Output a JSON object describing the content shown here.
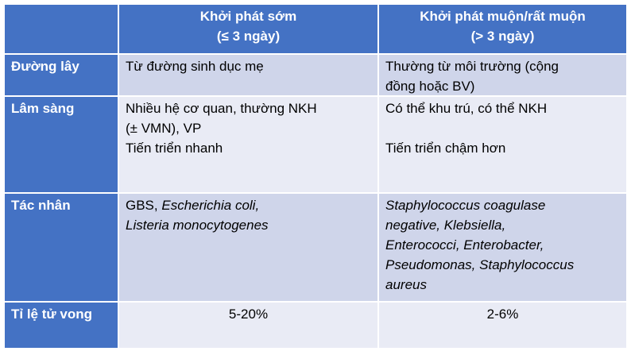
{
  "header": {
    "col1_line1": "Khởi phát sớm",
    "col1_line2": "(≤ 3 ngày)",
    "col2_line1": "Khởi phát muộn/rất muộn",
    "col2_line2": "(> 3 ngày)"
  },
  "rows": {
    "duong_lay": {
      "label": "Đường lây",
      "early": "Từ đường sinh dục mẹ",
      "late_line1": "Thường từ môi trường (cộng",
      "late_line2": "đồng hoặc BV)"
    },
    "lam_sang": {
      "label": "Lâm sàng",
      "early_line1": "Nhiều hệ cơ quan, thường NKH",
      "early_line2": "(± VMN), VP",
      "early_line3": "Tiến triển nhanh",
      "late_line1": "Có thể khu trú, có thể NKH",
      "late_line2": "Tiến triển chậm hơn"
    },
    "tac_nhan": {
      "label": "Tác nhân",
      "early_line1_plain": "GBS, ",
      "early_line1_italic": "Escherichia coli,",
      "early_line2_italic": "Listeria monocytogenes",
      "late_line1": "Staphylococcus coagulase",
      "late_line2": "negative, Klebsiella,",
      "late_line3": "Enterococci, Enterobacter,",
      "late_line4": "Pseudomonas, Staphylococcus",
      "late_line5": "aureus"
    },
    "ti_le": {
      "label": "Tỉ lệ tử vong",
      "early": "5-20%",
      "late": "2-6%"
    }
  },
  "colors": {
    "header_bg": "#4472c4",
    "row_odd_bg": "#cfd5ea",
    "row_even_bg": "#e9ebf5",
    "header_text": "#ffffff"
  }
}
